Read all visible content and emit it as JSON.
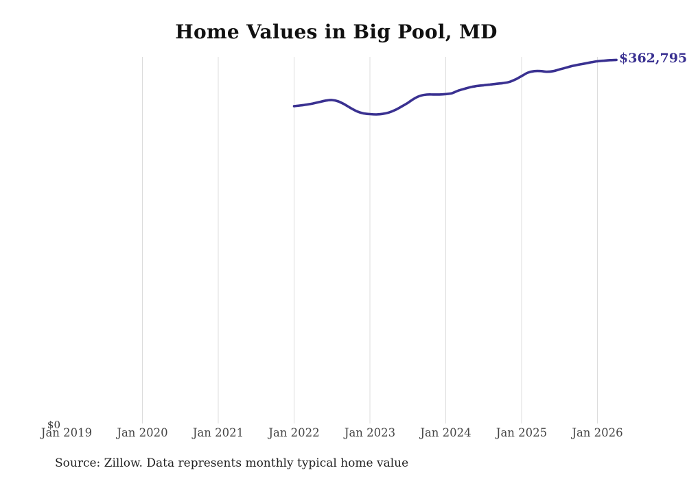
{
  "page": {
    "title": "Home Values in Big Pool, MD",
    "source_note": "Source: Zillow. Data represents monthly typical home value"
  },
  "chart_data": {
    "type": "line",
    "title": "Home Values in Big Pool, MD",
    "xlabel": "",
    "ylabel": "",
    "legend": "none",
    "grid": "vertical-only",
    "background_color": "#ffffff",
    "line_color": "#3a3191",
    "gridline_color": "#dcdcdc",
    "x_tick_labels": [
      "Jan 2019",
      "Jan 2020",
      "Jan 2021",
      "Jan 2022",
      "Jan 2023",
      "Jan 2024",
      "Jan 2025",
      "Jan 2026"
    ],
    "gridline_ticks": [
      "Jan 2020",
      "Jan 2021",
      "Jan 2022",
      "Jan 2023",
      "Jan 2024",
      "Jan 2025",
      "Jan 2026"
    ],
    "y_tick_labels": [
      "$0"
    ],
    "y_axis": {
      "min": 0,
      "last_value": 362795
    },
    "end_label": "$362,795",
    "series": [
      {
        "name": "Monthly typical home value",
        "x": [
          "2022-01",
          "2022-02",
          "2022-03",
          "2022-04",
          "2022-05",
          "2022-06",
          "2022-07",
          "2022-08",
          "2022-09",
          "2022-10",
          "2022-11",
          "2022-12",
          "2023-01",
          "2023-02",
          "2023-03",
          "2023-04",
          "2023-05",
          "2023-06",
          "2023-07",
          "2023-08",
          "2023-09",
          "2023-10",
          "2023-11",
          "2023-12",
          "2024-01",
          "2024-02",
          "2024-03",
          "2024-04",
          "2024-05",
          "2024-06",
          "2024-07",
          "2024-08",
          "2024-09",
          "2024-10",
          "2024-11",
          "2024-12",
          "2025-01",
          "2025-02",
          "2025-03",
          "2025-04",
          "2025-05",
          "2025-06",
          "2025-07",
          "2025-08",
          "2025-09",
          "2025-10",
          "2025-11",
          "2025-12",
          "2026-01",
          "2026-02",
          "2026-03",
          "2026-04"
        ],
        "values": [
          316800,
          317500,
          318400,
          319500,
          320900,
          322300,
          322900,
          321500,
          318500,
          314800,
          311500,
          309600,
          308900,
          308600,
          309100,
          310500,
          313000,
          316400,
          320100,
          324300,
          327200,
          328300,
          328400,
          328400,
          328800,
          329700,
          332300,
          334100,
          335800,
          336900,
          337600,
          338300,
          339000,
          339700,
          340800,
          343300,
          346700,
          350100,
          351600,
          351700,
          351000,
          351600,
          353300,
          355000,
          356700,
          358000,
          359200,
          360400,
          361400,
          362000,
          362500,
          362795
        ]
      }
    ]
  }
}
